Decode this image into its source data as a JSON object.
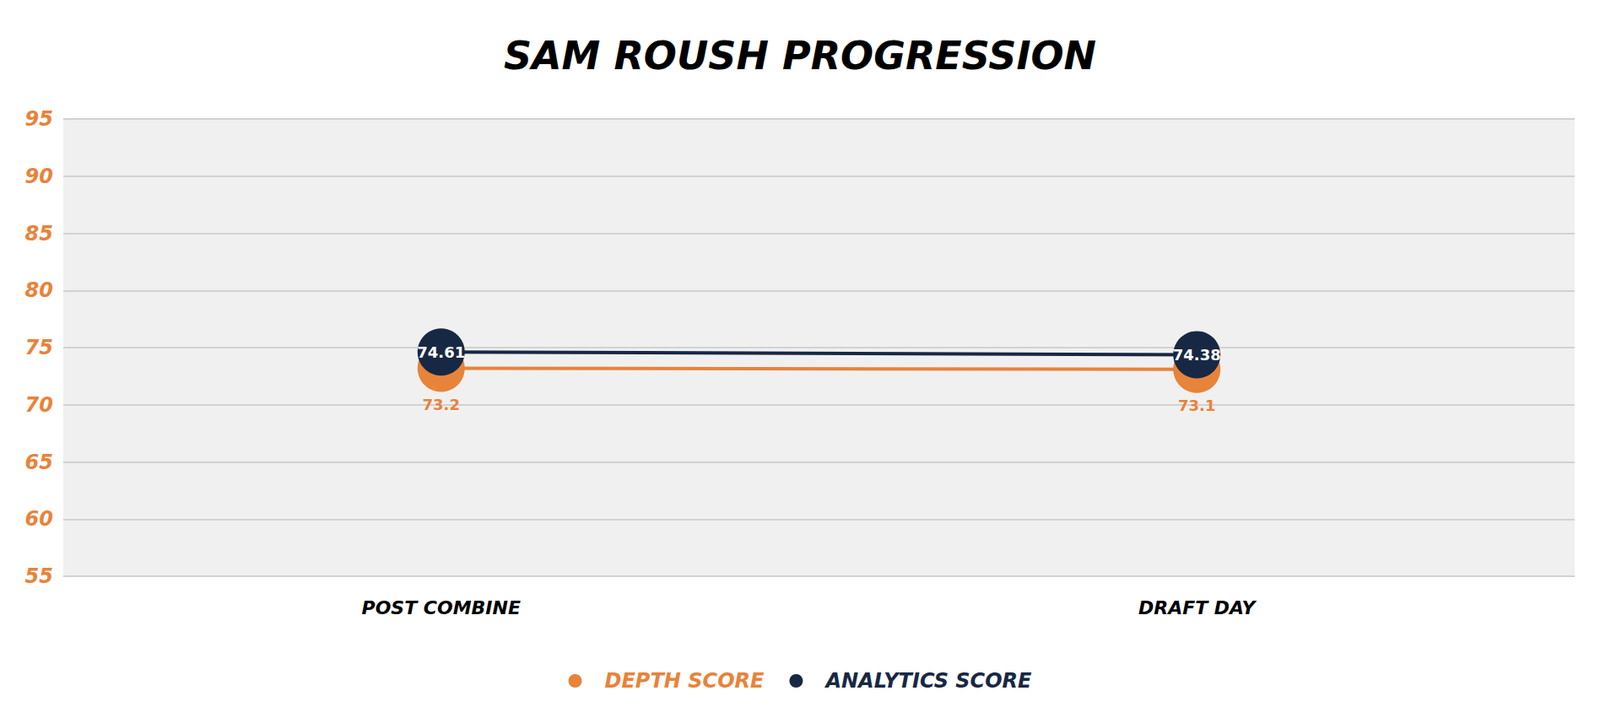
{
  "chart_data": {
    "type": "line",
    "title": "SAM ROUSH PROGRESSION",
    "categories": [
      "POST COMBINE",
      "DRAFT DAY"
    ],
    "series": [
      {
        "name": "DEPTH SCORE",
        "color": "#e8833a",
        "values": [
          73.2,
          73.1
        ]
      },
      {
        "name": "ANALYTICS SCORE",
        "color": "#172844",
        "values": [
          74.61,
          74.38
        ]
      }
    ],
    "ylim": [
      55,
      95
    ],
    "yticks": [
      55,
      60,
      65,
      70,
      75,
      80,
      85,
      90,
      95
    ],
    "grid": true,
    "legend": "bottom",
    "data_labels": true,
    "marker": "circle"
  }
}
